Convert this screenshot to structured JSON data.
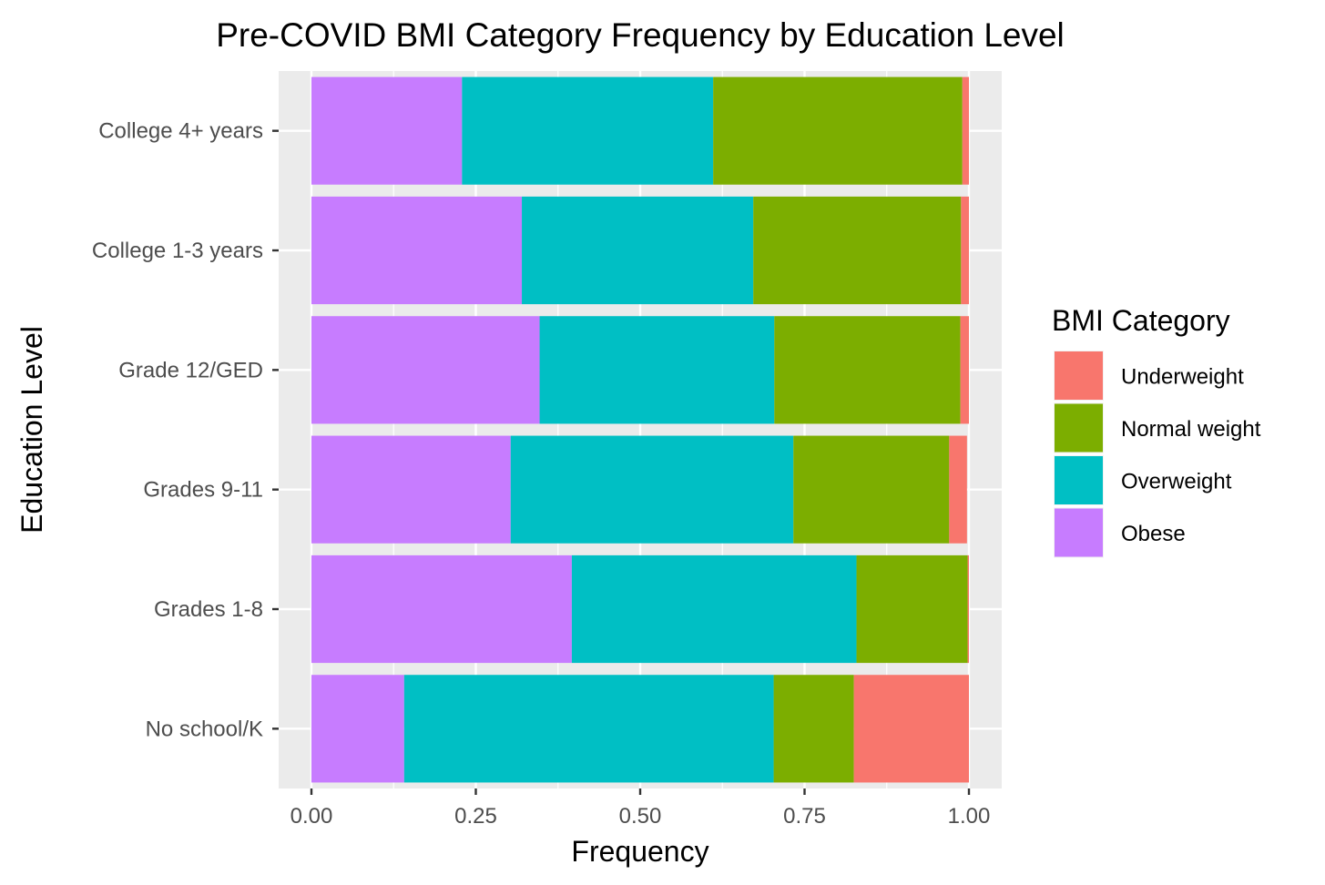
{
  "chart_data": {
    "type": "bar",
    "orientation": "horizontal",
    "stacked": true,
    "title": "Pre-COVID BMI Category Frequency by Education Level",
    "xlabel": "Frequency",
    "ylabel": "Education Level",
    "xlim": [
      0,
      1
    ],
    "x_ticks": [
      "0.00",
      "0.25",
      "0.50",
      "0.75",
      "1.00"
    ],
    "x_tick_values": [
      0,
      0.25,
      0.5,
      0.75,
      1.0
    ],
    "grid": true,
    "legend_position": "right",
    "legend_title": "BMI Category",
    "categories": [
      "No school/K",
      "Grades 1-8",
      "Grades 9-11",
      "Grade 12/GED",
      "College 1-3 years",
      "College 4+ years"
    ],
    "stack_order_left_to_right": [
      "Obese",
      "Overweight",
      "Normal weight",
      "Underweight"
    ],
    "series": [
      {
        "name": "Underweight",
        "color": "#F8766D",
        "values": [
          0.175,
          0.002,
          0.027,
          0.013,
          0.012,
          0.01
        ]
      },
      {
        "name": "Normal weight",
        "color": "#7CAE00",
        "values": [
          0.122,
          0.169,
          0.237,
          0.283,
          0.316,
          0.379
        ]
      },
      {
        "name": "Overweight",
        "color": "#00BFC4",
        "values": [
          0.562,
          0.433,
          0.43,
          0.357,
          0.352,
          0.382
        ]
      },
      {
        "name": "Obese",
        "color": "#C77CFF",
        "values": [
          0.141,
          0.396,
          0.303,
          0.347,
          0.32,
          0.229
        ]
      }
    ]
  }
}
